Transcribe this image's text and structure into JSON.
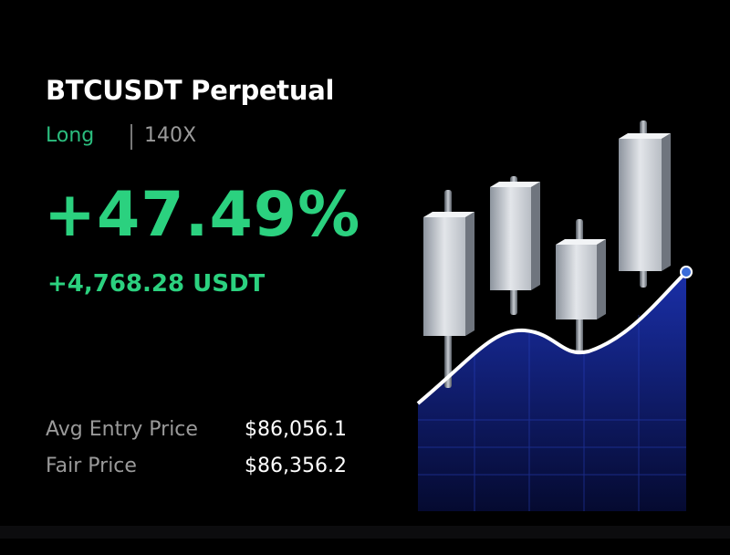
{
  "header": {
    "title": "BTCUSDT Perpetual",
    "side": "Long",
    "leverage": "140X"
  },
  "pnl": {
    "percent": "+47.49%",
    "amount": "+4,768.28 USDT"
  },
  "details": {
    "rows": [
      [
        "Avg Entry Price",
        "$86,056.1"
      ],
      [
        "Fair Price",
        "$86,356.2"
      ]
    ]
  }
}
